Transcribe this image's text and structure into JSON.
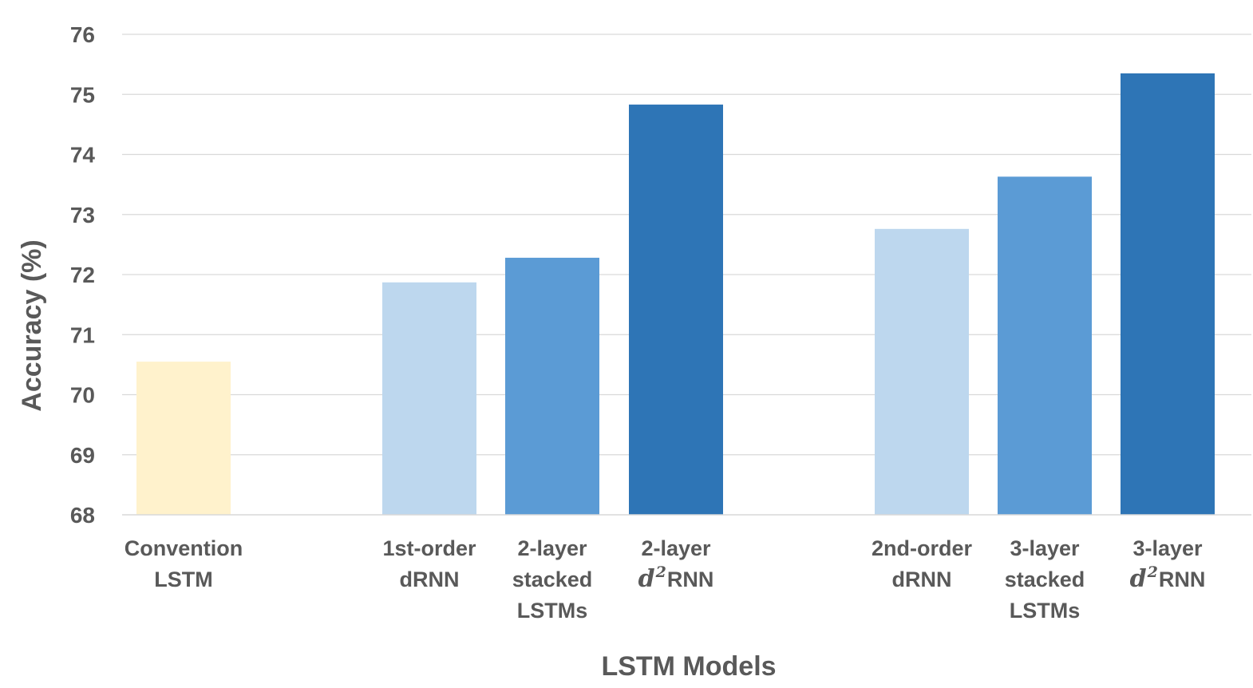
{
  "chart_data": {
    "type": "bar",
    "xlabel": "LSTM Models",
    "ylabel": "Accuracy (%)",
    "ylim": [
      68,
      76
    ],
    "yticks": [
      "68",
      "69",
      "70",
      "71",
      "72",
      "73",
      "74",
      "75",
      "76"
    ],
    "grid": true,
    "legend": "none",
    "categories": [
      {
        "lines": [
          [
            "Convention"
          ],
          [
            "LSTM"
          ]
        ],
        "value": 70.55,
        "color": "#FFF2CC",
        "group": 0
      },
      {
        "lines": [
          [
            "1st-order"
          ],
          [
            "dRNN"
          ]
        ],
        "value": 71.87,
        "color": "#BDD7EE",
        "group": 1
      },
      {
        "lines": [
          [
            "2-layer"
          ],
          [
            "stacked"
          ],
          [
            "LSTMs"
          ]
        ],
        "value": 72.28,
        "color": "#5B9BD5",
        "group": 1
      },
      {
        "lines": [
          [
            "2-layer"
          ],
          [
            "d",
            "2",
            "RNN"
          ]
        ],
        "value": 74.83,
        "color": "#2E75B6",
        "group": 1
      },
      {
        "lines": [
          [
            "2nd-order"
          ],
          [
            "dRNN"
          ]
        ],
        "value": 72.76,
        "color": "#BDD7EE",
        "group": 2
      },
      {
        "lines": [
          [
            "3-layer"
          ],
          [
            "stacked"
          ],
          [
            "LSTMs"
          ]
        ],
        "value": 73.63,
        "color": "#5B9BD5",
        "group": 2
      },
      {
        "lines": [
          [
            "3-layer"
          ],
          [
            "d",
            "2",
            "RNN"
          ]
        ],
        "value": 75.35,
        "color": "#2E75B6",
        "group": 2
      }
    ]
  }
}
